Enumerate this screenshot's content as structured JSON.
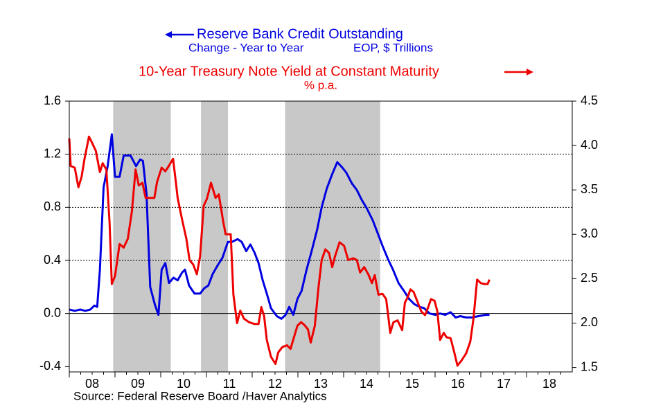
{
  "chart_data": {
    "type": "line",
    "title": "Reserve Bank Credit Outstanding",
    "subtitle": "Change - Year to Year",
    "units": "EOP, $ Trillions",
    "title2": "10-Year Treasury Note Yield at Constant Maturity",
    "units2": "% p.a.",
    "source": "Source:  Federal Reserve Board /Haver Analytics",
    "xlim": [
      2008,
      2019
    ],
    "xticks": [
      {
        "value": 2008.5,
        "label": "08"
      },
      {
        "value": 2009.5,
        "label": "09"
      },
      {
        "value": 2010.5,
        "label": "10"
      },
      {
        "value": 2011.5,
        "label": "11"
      },
      {
        "value": 2012.5,
        "label": "12"
      },
      {
        "value": 2013.5,
        "label": "13"
      },
      {
        "value": 2014.5,
        "label": "14"
      },
      {
        "value": 2015.5,
        "label": "15"
      },
      {
        "value": 2016.5,
        "label": "16"
      },
      {
        "value": 2017.5,
        "label": "17"
      },
      {
        "value": 2018.5,
        "label": "18"
      }
    ],
    "ylim": [
      -0.44,
      1.6
    ],
    "yticks": [
      1.6,
      1.2,
      0.8,
      0.4,
      {
        "value": 0,
        "label": "0.0"
      },
      -0.4
    ],
    "y2lim": [
      1.45,
      4.5
    ],
    "y2ticks": [
      4.5,
      {
        "value": 4,
        "label": "4.0"
      },
      3.5,
      {
        "value": 3,
        "label": "3.0"
      },
      2.5,
      {
        "value": 2,
        "label": "2.0"
      },
      1.5
    ],
    "grid": true,
    "shaded": [
      [
        2008.96,
        2010.22
      ],
      [
        2010.88,
        2011.47
      ],
      [
        2012.72,
        2014.8
      ]
    ],
    "shade_color": "#c8c8c8",
    "series": [
      {
        "name": "Reserve Bank Credit Outstanding",
        "color": "#0000e0",
        "axis": "y",
        "x": [
          2008.0,
          2008.12,
          2008.24,
          2008.35,
          2008.46,
          2008.55,
          2008.61,
          2008.67,
          2008.75,
          2008.84,
          2008.93,
          2009.0,
          2009.1,
          2009.19,
          2009.34,
          2009.46,
          2009.55,
          2009.61,
          2009.69,
          2009.77,
          2009.87,
          2009.95,
          2010.02,
          2010.1,
          2010.18,
          2010.28,
          2010.37,
          2010.47,
          2010.53,
          2010.62,
          2010.74,
          2010.86,
          2010.95,
          2011.04,
          2011.14,
          2011.24,
          2011.35,
          2011.47,
          2011.56,
          2011.68,
          2011.77,
          2011.87,
          2011.96,
          2012.05,
          2012.14,
          2012.23,
          2012.32,
          2012.41,
          2012.54,
          2012.64,
          2012.73,
          2012.81,
          2012.9,
          2012.99,
          2013.08,
          2013.19,
          2013.3,
          2013.42,
          2013.52,
          2013.63,
          2013.75,
          2013.86,
          2013.97,
          2014.06,
          2014.18,
          2014.29,
          2014.39,
          2014.51,
          2014.64,
          2014.74,
          2014.85,
          2014.97,
          2015.08,
          2015.2,
          2015.32,
          2015.43,
          2015.55,
          2015.66,
          2015.76,
          2015.88,
          2016.01,
          2016.11,
          2016.22,
          2016.34,
          2016.45,
          2016.55,
          2016.68,
          2016.8,
          2016.95,
          2017.1,
          2017.19
        ],
        "values": [
          0.03,
          0.02,
          0.03,
          0.02,
          0.03,
          0.06,
          0.05,
          0.33,
          0.95,
          1.11,
          1.35,
          1.03,
          1.03,
          1.19,
          1.19,
          1.11,
          1.16,
          1.15,
          0.9,
          0.2,
          0.07,
          -0.01,
          0.33,
          0.38,
          0.23,
          0.27,
          0.25,
          0.31,
          0.33,
          0.21,
          0.15,
          0.15,
          0.19,
          0.21,
          0.3,
          0.36,
          0.42,
          0.54,
          0.54,
          0.56,
          0.54,
          0.47,
          0.52,
          0.46,
          0.38,
          0.25,
          0.15,
          0.04,
          -0.02,
          -0.04,
          -0.01,
          0.05,
          -0.01,
          0.11,
          0.17,
          0.33,
          0.47,
          0.63,
          0.8,
          0.94,
          1.05,
          1.14,
          1.1,
          1.06,
          0.98,
          0.93,
          0.86,
          0.79,
          0.7,
          0.61,
          0.51,
          0.41,
          0.33,
          0.23,
          0.17,
          0.11,
          0.07,
          0.05,
          0.04,
          0.0,
          -0.01,
          0.0,
          -0.01,
          0.01,
          -0.03,
          -0.02,
          -0.03,
          -0.03,
          -0.02,
          -0.01,
          -0.01
        ]
      },
      {
        "name": "10-Year Treasury Note Yield at Constant Maturity",
        "color": "#ee0000",
        "axis": "y2",
        "x": [
          2008.0,
          2008.03,
          2008.12,
          2008.2,
          2008.27,
          2008.33,
          2008.43,
          2008.49,
          2008.58,
          2008.67,
          2008.73,
          2008.81,
          2008.88,
          2008.93,
          2009.0,
          2009.1,
          2009.19,
          2009.28,
          2009.37,
          2009.45,
          2009.52,
          2009.6,
          2009.67,
          2009.75,
          2009.86,
          2009.92,
          2010.02,
          2010.1,
          2010.19,
          2010.27,
          2010.33,
          2010.37,
          2010.47,
          2010.56,
          2010.63,
          2010.71,
          2010.79,
          2010.86,
          2010.94,
          2011.01,
          2011.1,
          2011.2,
          2011.27,
          2011.36,
          2011.42,
          2011.53,
          2011.59,
          2011.67,
          2011.74,
          2011.82,
          2011.93,
          2012.05,
          2012.14,
          2012.2,
          2012.26,
          2012.32,
          2012.41,
          2012.51,
          2012.57,
          2012.66,
          2012.76,
          2012.84,
          2012.92,
          2012.99,
          2013.07,
          2013.14,
          2013.22,
          2013.28,
          2013.37,
          2013.45,
          2013.52,
          2013.6,
          2013.68,
          2013.75,
          2013.81,
          2013.91,
          2014.01,
          2014.1,
          2014.21,
          2014.29,
          2014.36,
          2014.45,
          2014.54,
          2014.62,
          2014.68,
          2014.76,
          2014.85,
          2014.93,
          2015.02,
          2015.09,
          2015.18,
          2015.28,
          2015.34,
          2015.4,
          2015.46,
          2015.53,
          2015.63,
          2015.7,
          2015.78,
          2015.85,
          2015.91,
          2015.99,
          2016.05,
          2016.11,
          2016.19,
          2016.25,
          2016.34,
          2016.42,
          2016.49,
          2016.58,
          2016.68,
          2016.77,
          2016.84,
          2016.92,
          2017.0,
          2017.07,
          2017.15,
          2017.19
        ],
        "values": [
          4.08,
          3.77,
          3.75,
          3.53,
          3.65,
          3.84,
          4.1,
          4.04,
          3.94,
          3.7,
          3.8,
          3.73,
          3.14,
          2.44,
          2.53,
          2.89,
          2.85,
          2.95,
          3.26,
          3.73,
          3.55,
          3.58,
          3.41,
          3.41,
          3.41,
          3.59,
          3.75,
          3.71,
          3.78,
          3.85,
          3.59,
          3.41,
          3.16,
          2.95,
          2.71,
          2.66,
          2.55,
          2.75,
          3.32,
          3.4,
          3.58,
          3.41,
          3.45,
          3.16,
          3.0,
          3.0,
          2.32,
          2.0,
          2.14,
          2.05,
          2.01,
          1.99,
          1.99,
          2.18,
          2.08,
          1.81,
          1.62,
          1.54,
          1.67,
          1.73,
          1.75,
          1.71,
          1.85,
          1.97,
          2.01,
          1.98,
          1.93,
          1.78,
          1.97,
          2.4,
          2.71,
          2.83,
          2.79,
          2.63,
          2.75,
          2.91,
          2.87,
          2.71,
          2.73,
          2.71,
          2.57,
          2.63,
          2.55,
          2.45,
          2.54,
          2.32,
          2.33,
          2.27,
          1.89,
          2.01,
          2.03,
          1.92,
          2.23,
          2.29,
          2.38,
          2.35,
          2.22,
          2.13,
          2.09,
          2.18,
          2.27,
          2.25,
          2.13,
          1.81,
          1.89,
          1.84,
          1.83,
          1.67,
          1.52,
          1.58,
          1.66,
          1.79,
          2.05,
          2.49,
          2.45,
          2.44,
          2.44,
          2.49
        ]
      }
    ]
  }
}
